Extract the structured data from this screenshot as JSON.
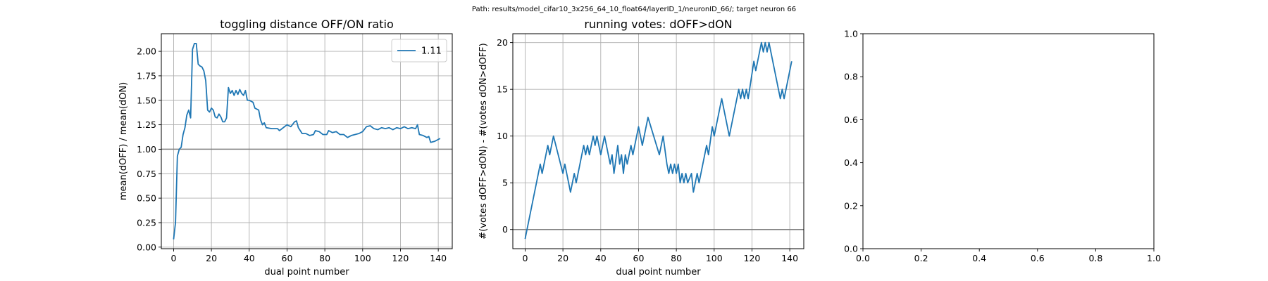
{
  "figure_title": "Path: results/model_cifar10_3x256_64_10_float64/layerID_1/neuronID_66/; target neuron 66",
  "chart_data": [
    {
      "type": "line",
      "title": "toggling distance OFF/ON ratio",
      "x_label": "dual point number",
      "y_label": "mean(dOFF) / mean(dON)",
      "x": [
        0,
        1,
        2,
        3,
        4,
        5,
        6,
        7,
        8,
        9,
        10,
        11,
        12,
        13,
        14,
        15,
        16,
        17,
        18,
        19,
        20,
        21,
        22,
        23,
        24,
        25,
        26,
        27,
        28,
        29,
        30,
        31,
        32,
        33,
        34,
        35,
        36,
        37,
        38,
        39,
        40,
        42,
        43,
        45,
        46,
        47,
        48,
        49,
        52,
        55,
        56,
        58,
        60,
        62,
        64,
        65,
        66,
        68,
        70,
        72,
        74,
        75,
        77,
        79,
        81,
        82,
        84,
        86,
        88,
        90,
        92,
        94,
        96,
        98,
        100,
        102,
        104,
        106,
        108,
        110,
        112,
        114,
        116,
        118,
        120,
        122,
        124,
        126,
        128,
        129,
        130,
        132,
        134,
        135,
        136,
        138,
        140,
        141
      ],
      "series": [
        {
          "name": "1.11",
          "color": "#1f77b4",
          "values": [
            0.08,
            0.25,
            0.93,
            1.0,
            1.02,
            1.15,
            1.22,
            1.35,
            1.4,
            1.32,
            2.02,
            2.08,
            2.08,
            1.87,
            1.85,
            1.84,
            1.8,
            1.7,
            1.4,
            1.38,
            1.42,
            1.4,
            1.33,
            1.32,
            1.36,
            1.33,
            1.28,
            1.28,
            1.32,
            1.63,
            1.57,
            1.6,
            1.55,
            1.6,
            1.56,
            1.61,
            1.57,
            1.55,
            1.6,
            1.5,
            1.5,
            1.48,
            1.42,
            1.4,
            1.3,
            1.25,
            1.27,
            1.22,
            1.21,
            1.21,
            1.19,
            1.22,
            1.25,
            1.23,
            1.28,
            1.29,
            1.22,
            1.16,
            1.16,
            1.14,
            1.15,
            1.19,
            1.18,
            1.15,
            1.15,
            1.19,
            1.17,
            1.18,
            1.15,
            1.15,
            1.12,
            1.14,
            1.15,
            1.16,
            1.18,
            1.23,
            1.24,
            1.21,
            1.2,
            1.22,
            1.21,
            1.22,
            1.2,
            1.22,
            1.21,
            1.23,
            1.21,
            1.22,
            1.21,
            1.25,
            1.15,
            1.14,
            1.12,
            1.13,
            1.07,
            1.08,
            1.1,
            1.11
          ]
        }
      ],
      "hline": 1,
      "hline_color": "#808080",
      "xlim": [
        -6.5,
        147.4
      ],
      "xticks": [
        0,
        20,
        40,
        60,
        80,
        100,
        120,
        140
      ],
      "ylim": [
        -0.016,
        2.18
      ],
      "yticks": [
        {
          "value": 0,
          "label": "0.00"
        },
        {
          "value": 0.25,
          "label": "0.25"
        },
        {
          "value": 0.5,
          "label": "0.50"
        },
        {
          "value": 0.75,
          "label": "0.75"
        },
        {
          "value": 1,
          "label": "1.00"
        },
        {
          "value": 1.25,
          "label": "1.25"
        },
        {
          "value": 1.5,
          "label": "1.50"
        },
        {
          "value": 1.75,
          "label": "1.75"
        },
        {
          "value": 2,
          "label": "2.00"
        }
      ],
      "grid": true,
      "legend": "upper right"
    },
    {
      "type": "line",
      "title": "running votes: dOFF>dON",
      "x_label": "dual point number",
      "y_label": "#(votes dOFF>dON) - #(votes dON>dOFF)",
      "x": [
        0,
        8,
        9,
        12,
        13,
        15,
        20,
        21,
        24,
        26,
        27,
        31,
        32,
        33,
        34,
        36,
        37,
        38,
        40,
        42,
        45,
        46,
        47,
        49,
        50,
        51,
        52,
        53,
        54,
        56,
        57,
        60,
        62,
        65,
        71,
        73,
        75,
        76,
        77,
        78,
        79,
        80,
        81,
        82,
        83,
        84,
        85,
        86,
        88,
        89,
        91,
        92,
        96,
        97,
        99,
        100,
        104,
        108,
        113,
        114,
        115,
        116,
        117,
        118,
        121,
        122,
        125,
        126,
        127,
        128,
        129,
        132,
        135,
        136,
        137,
        141
      ],
      "series": [
        {
          "color": "#1f77b4",
          "values": [
            -1,
            7,
            6,
            9,
            8,
            10,
            6,
            7,
            4,
            6,
            5,
            9,
            8,
            9,
            8,
            10,
            9,
            10,
            8,
            10,
            7,
            8,
            6,
            9,
            7,
            8,
            6,
            8,
            7,
            9,
            8,
            11,
            9,
            12,
            8,
            10,
            7,
            6,
            7,
            6,
            7,
            6,
            7,
            5,
            6,
            5,
            6,
            5,
            6,
            4,
            6,
            5,
            9,
            8,
            11,
            10,
            14,
            10,
            15,
            14,
            15,
            14,
            15,
            14,
            18,
            17,
            20,
            19,
            20,
            19,
            20,
            17,
            14,
            15,
            14,
            18
          ]
        }
      ],
      "hline": 0,
      "hline_color": "#808080",
      "xlim": [
        -6.5,
        147.4
      ],
      "xticks": [
        0,
        20,
        40,
        60,
        80,
        100,
        120,
        140
      ],
      "ylim": [
        -2.05,
        20.95
      ],
      "yticks": [
        0,
        5,
        10,
        15,
        20
      ],
      "grid": true
    },
    {
      "type": "empty",
      "xlim": [
        0,
        1
      ],
      "xticks": [
        {
          "value": 0,
          "label": "0.0"
        },
        {
          "value": 0.2,
          "label": "0.2"
        },
        {
          "value": 0.4,
          "label": "0.4"
        },
        {
          "value": 0.6,
          "label": "0.6"
        },
        {
          "value": 0.8,
          "label": "0.8"
        },
        {
          "value": 1,
          "label": "1.0"
        }
      ],
      "ylim": [
        0,
        1
      ],
      "yticks": [
        {
          "value": 0,
          "label": "0.0"
        },
        {
          "value": 0.2,
          "label": "0.2"
        },
        {
          "value": 0.4,
          "label": "0.4"
        },
        {
          "value": 0.6,
          "label": "0.6"
        },
        {
          "value": 0.8,
          "label": "0.8"
        },
        {
          "value": 1,
          "label": "1.0"
        }
      ],
      "grid": false
    }
  ]
}
